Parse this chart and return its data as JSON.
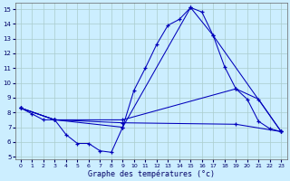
{
  "title": "Graphe des températures (°c)",
  "bg_color": "#cceeff",
  "grid_color": "#aacccc",
  "line_color": "#0000bb",
  "xlim": [
    -0.5,
    23.5
  ],
  "ylim": [
    4.8,
    15.4
  ],
  "yticks": [
    5,
    6,
    7,
    8,
    9,
    10,
    11,
    12,
    13,
    14,
    15
  ],
  "xticks": [
    0,
    1,
    2,
    3,
    4,
    5,
    6,
    7,
    8,
    9,
    10,
    11,
    12,
    13,
    14,
    15,
    16,
    17,
    18,
    19,
    20,
    21,
    22,
    23
  ],
  "line1_x": [
    0,
    1,
    2,
    3,
    4,
    5,
    6,
    7,
    8,
    9,
    10,
    11,
    12,
    13,
    14,
    15,
    16,
    17,
    18,
    19,
    20,
    21,
    22,
    23
  ],
  "line1_y": [
    8.3,
    7.9,
    7.5,
    7.5,
    6.5,
    5.9,
    5.9,
    5.4,
    5.3,
    7.0,
    9.5,
    11.0,
    12.6,
    13.9,
    14.3,
    15.1,
    14.8,
    13.2,
    11.1,
    9.6,
    8.9,
    7.4,
    6.9,
    6.7
  ],
  "line2_x": [
    0,
    3,
    9,
    15,
    17,
    23
  ],
  "line2_y": [
    8.3,
    7.5,
    7.0,
    15.1,
    13.2,
    6.7
  ],
  "line3_x": [
    0,
    3,
    9,
    19,
    21,
    23
  ],
  "line3_y": [
    8.3,
    7.5,
    7.5,
    9.6,
    8.9,
    6.7
  ],
  "line4_x": [
    0,
    3,
    9,
    19,
    23
  ],
  "line4_y": [
    8.3,
    7.5,
    7.3,
    7.2,
    6.7
  ]
}
